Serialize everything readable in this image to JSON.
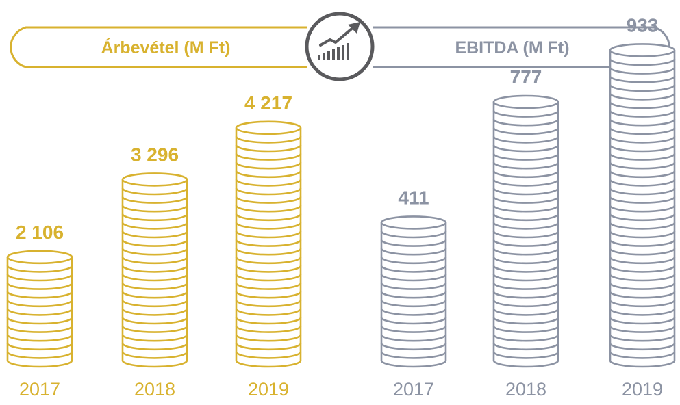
{
  "colors": {
    "revenue": "#d8b22f",
    "ebitda": "#8c93a3",
    "icon": "#5a5a5d",
    "background": "#ffffff"
  },
  "icon": {
    "name": "growth-chart-icon"
  },
  "chart_data": [
    {
      "type": "bar",
      "title": "Árbevétel (M Ft)",
      "categories": [
        "2017",
        "2018",
        "2019"
      ],
      "values": [
        2106,
        3296,
        4217
      ],
      "value_labels": [
        "2 106",
        "3 296",
        "4 217"
      ],
      "coin_counts": [
        12,
        21,
        27
      ],
      "ylim": [
        0,
        4500
      ],
      "grid": false,
      "legend": "none"
    },
    {
      "type": "bar",
      "title": "EBITDA (M Ft)",
      "categories": [
        "2017",
        "2018",
        "2019"
      ],
      "values": [
        411,
        777,
        933
      ],
      "value_labels": [
        "411",
        "777",
        "933"
      ],
      "coin_counts": [
        16,
        30,
        36
      ],
      "ylim": [
        0,
        1000
      ],
      "grid": false,
      "legend": "none"
    }
  ]
}
